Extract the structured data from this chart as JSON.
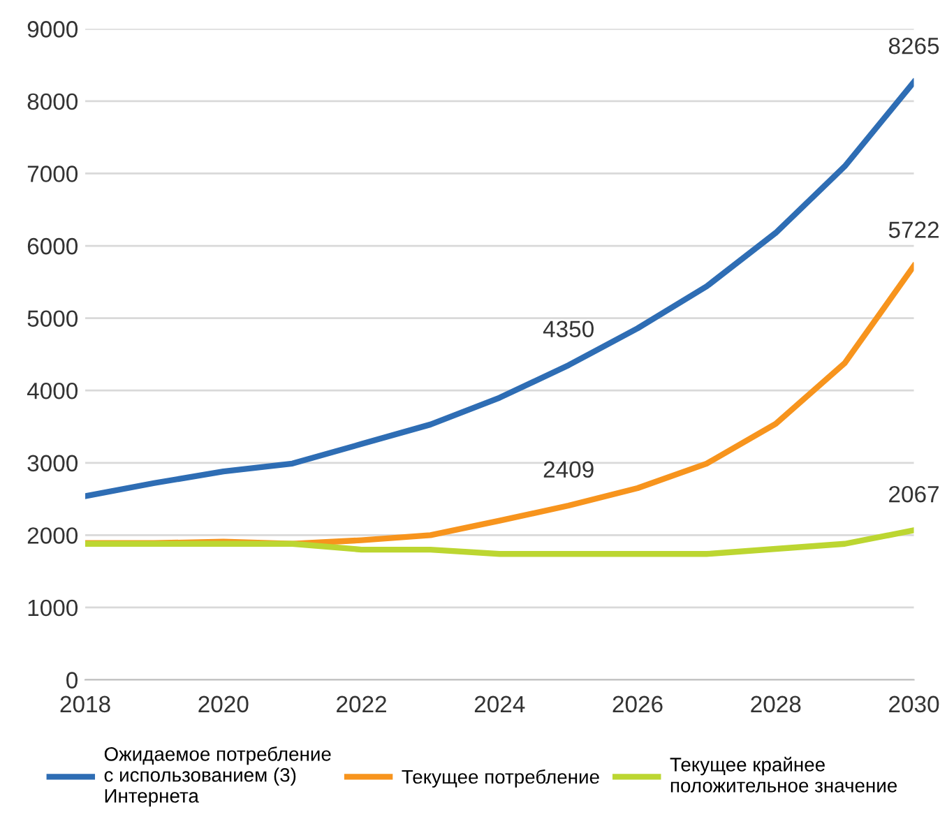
{
  "chart_data": {
    "type": "line",
    "x": [
      2018,
      2019,
      2020,
      2021,
      2022,
      2023,
      2024,
      2025,
      2026,
      2027,
      2028,
      2029,
      2030
    ],
    "series": [
      {
        "name": "Ожидаемое потребление с использованием (3) Интернета",
        "color": "#2e6db4",
        "values": [
          2540,
          2720,
          2880,
          2990,
          3260,
          3530,
          3900,
          4350,
          4860,
          5440,
          6180,
          7100,
          8265
        ],
        "value_labels": [
          null,
          null,
          null,
          null,
          null,
          null,
          null,
          "4350",
          null,
          null,
          null,
          null,
          "8265"
        ]
      },
      {
        "name": "Текущее потребление",
        "color": "#f7941d",
        "values": [
          1890,
          1890,
          1910,
          1880,
          1930,
          2000,
          2200,
          2409,
          2650,
          2990,
          3540,
          4380,
          5722
        ],
        "value_labels": [
          null,
          null,
          null,
          null,
          null,
          null,
          null,
          "2409",
          null,
          null,
          null,
          null,
          "5722"
        ]
      },
      {
        "name": "Текущее крайнее положительное значение",
        "color": "#bcd631",
        "values": [
          1880,
          1880,
          1880,
          1880,
          1800,
          1800,
          1740,
          1740,
          1740,
          1740,
          1810,
          1880,
          2067
        ],
        "value_labels": [
          null,
          null,
          null,
          null,
          null,
          null,
          null,
          null,
          null,
          null,
          null,
          null,
          "2067"
        ]
      }
    ],
    "xlim": [
      2018,
      2030
    ],
    "xticks": [
      2018,
      2020,
      2022,
      2024,
      2026,
      2028,
      2030
    ],
    "ylim": [
      0,
      9000
    ],
    "yticks": [
      0,
      1000,
      2000,
      3000,
      4000,
      5000,
      6000,
      7000,
      8000,
      9000
    ],
    "grid": "y",
    "legend": "bottom",
    "marker": "none",
    "line_style": "solid"
  }
}
